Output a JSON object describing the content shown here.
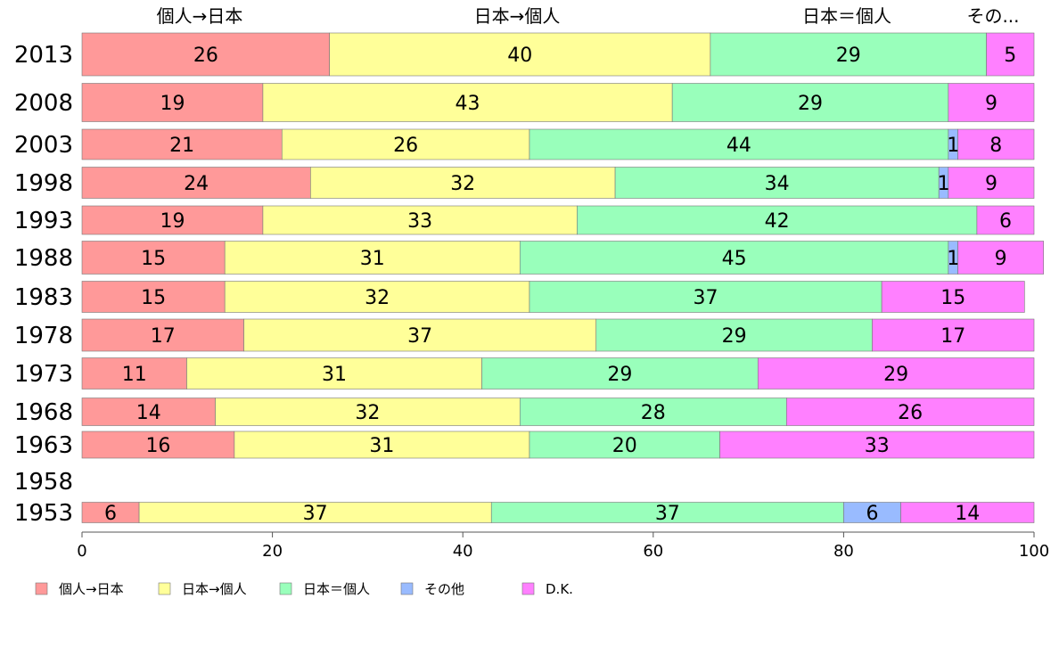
{
  "chart_data": {
    "type": "bar",
    "orientation": "horizontal",
    "stacked": true,
    "xlim": [
      0,
      100
    ],
    "xticks": [
      "0",
      "20",
      "40",
      "60",
      "80",
      "100"
    ],
    "top_labels": [
      "個人→日本",
      "日本→個人",
      "日本＝個人",
      "その..."
    ],
    "legend_position": "bottom",
    "series": [
      {
        "name": "個人→日本",
        "color": "#ff9999"
      },
      {
        "name": "日本→個人",
        "color": "#ffff99"
      },
      {
        "name": "日本＝個人",
        "color": "#99ffbb"
      },
      {
        "name": "その他",
        "color": "#99bbff"
      },
      {
        "name": "D.K.",
        "color": "#ff80ff"
      }
    ],
    "rows": [
      {
        "year": "2013",
        "values": [
          26,
          40,
          29,
          0,
          5
        ]
      },
      {
        "year": "2008",
        "values": [
          19,
          43,
          29,
          0,
          9
        ]
      },
      {
        "year": "2003",
        "values": [
          21,
          26,
          44,
          1,
          8
        ]
      },
      {
        "year": "1998",
        "values": [
          24,
          32,
          34,
          1,
          9
        ]
      },
      {
        "year": "1993",
        "values": [
          19,
          33,
          42,
          0,
          6
        ]
      },
      {
        "year": "1988",
        "values": [
          15,
          31,
          45,
          1,
          9
        ]
      },
      {
        "year": "1983",
        "values": [
          15,
          32,
          37,
          0,
          15
        ]
      },
      {
        "year": "1978",
        "values": [
          17,
          37,
          29,
          0,
          17
        ]
      },
      {
        "year": "1973",
        "values": [
          11,
          31,
          29,
          0,
          29
        ]
      },
      {
        "year": "1968",
        "values": [
          14,
          32,
          28,
          0,
          26
        ]
      },
      {
        "year": "1963",
        "values": [
          16,
          31,
          20,
          0,
          33
        ]
      },
      {
        "year": "1958",
        "values": null
      },
      {
        "year": "1953",
        "values": [
          6,
          37,
          37,
          6,
          14
        ]
      }
    ]
  }
}
